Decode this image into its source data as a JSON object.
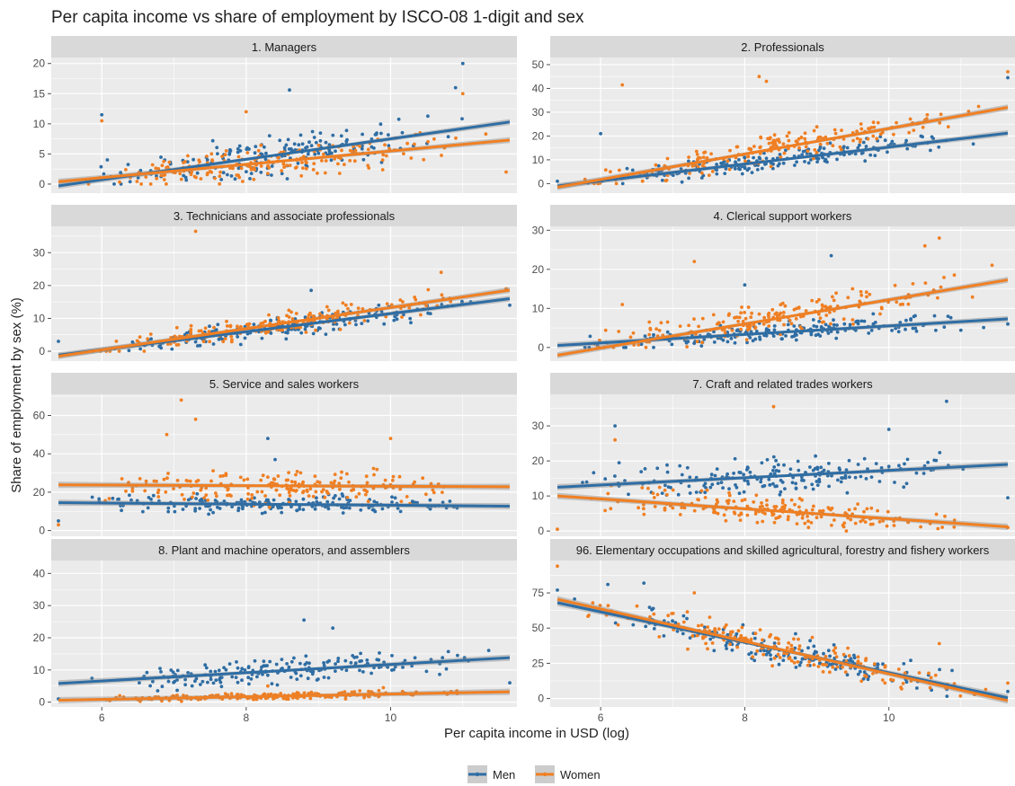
{
  "colors": {
    "men": "#2e6da4",
    "women": "#f07f22",
    "panel_bg": "#ebebeb",
    "strip_bg": "#d9d9d9",
    "grid": "#ffffff",
    "ribbon": "#8f8f8f"
  },
  "chart_data": {
    "type": "scatter",
    "title": "Per capita income vs share of employment by ISCO-08 1-digit and sex",
    "xlabel": "Per capita income in USD (log)",
    "ylabel": "Share of employment by sex (%)",
    "xlim": [
      5.3,
      11.75
    ],
    "x_ticks": [
      6,
      8,
      10
    ],
    "grid": true,
    "legend_position": "bottom",
    "series": [
      {
        "name": "Men",
        "key": "men",
        "color": "#2e6da4"
      },
      {
        "name": "Women",
        "key": "women",
        "color": "#f07f22"
      }
    ],
    "panels": [
      {
        "title": "1. Managers",
        "ylim": [
          -1.5,
          21
        ],
        "yticks": [
          0,
          5,
          10,
          15,
          20
        ],
        "fits": {
          "men": [
            [
              5.4,
              -0.3
            ],
            [
              11.65,
              10.3
            ]
          ],
          "women": [
            [
              5.4,
              0.4
            ],
            [
              11.65,
              7.3
            ]
          ]
        },
        "points": {
          "men": {
            "seed": 11,
            "n": 190,
            "noise": 2.6,
            "min": 0,
            "max": 20,
            "fixed": [
              [
                6.0,
                11.5
              ],
              [
                8.6,
                15.6
              ],
              [
                11.0,
                20.0
              ],
              [
                10.9,
                16.0
              ]
            ]
          },
          "women": {
            "seed": 12,
            "n": 190,
            "noise": 2.2,
            "min": 0,
            "max": 20,
            "fixed": [
              [
                6.0,
                10.5
              ],
              [
                11.6,
                2.0
              ],
              [
                11.0,
                15.0
              ],
              [
                8.0,
                12.0
              ]
            ]
          }
        }
      },
      {
        "title": "2. Professionals",
        "ylim": [
          -4,
          53
        ],
        "yticks": [
          0,
          10,
          20,
          30,
          40,
          50
        ],
        "fits": {
          "men": [
            [
              5.4,
              -1.0
            ],
            [
              11.65,
              21.2
            ]
          ],
          "women": [
            [
              5.4,
              -1.5
            ],
            [
              11.65,
              32.0
            ]
          ]
        },
        "points": {
          "men": {
            "seed": 21,
            "n": 190,
            "noise": 3.6,
            "min": 0,
            "max": 50,
            "fixed": [
              [
                6.0,
                21.0
              ],
              [
                11.65,
                44.5
              ],
              [
                5.4,
                1.0
              ]
            ]
          },
          "women": {
            "seed": 22,
            "n": 190,
            "noise": 5.0,
            "min": 0,
            "max": 50,
            "fixed": [
              [
                6.3,
                41.5
              ],
              [
                8.2,
                45.0
              ],
              [
                8.3,
                43.0
              ],
              [
                11.65,
                47.0
              ]
            ]
          }
        }
      },
      {
        "title": "3. Technicians and associate professionals",
        "ylim": [
          -3,
          38
        ],
        "yticks": [
          0,
          10,
          20,
          30
        ],
        "fits": {
          "men": [
            [
              5.4,
              -1.2
            ],
            [
              11.65,
              16.0
            ]
          ],
          "women": [
            [
              5.4,
              -1.5
            ],
            [
              11.65,
              18.6
            ]
          ]
        },
        "points": {
          "men": {
            "seed": 31,
            "n": 190,
            "noise": 2.8,
            "min": 0,
            "max": 40,
            "fixed": [
              [
                5.4,
                3.0
              ],
              [
                11.65,
                14.0
              ],
              [
                8.9,
                18.5
              ]
            ]
          },
          "women": {
            "seed": 32,
            "n": 190,
            "noise": 2.9,
            "min": 0,
            "max": 40,
            "fixed": [
              [
                7.3,
                36.5
              ],
              [
                10.7,
                24.0
              ],
              [
                11.6,
                19.0
              ]
            ]
          }
        }
      },
      {
        "title": "4. Clerical support workers",
        "ylim": [
          -3.5,
          31
        ],
        "yticks": [
          0,
          10,
          20,
          30
        ],
        "fits": {
          "men": [
            [
              5.4,
              0.5
            ],
            [
              11.65,
              7.3
            ]
          ],
          "women": [
            [
              5.4,
              -2.0
            ],
            [
              11.65,
              17.3
            ]
          ]
        },
        "points": {
          "men": {
            "seed": 41,
            "n": 190,
            "noise": 2.3,
            "min": 0,
            "max": 30,
            "fixed": [
              [
                9.2,
                23.5
              ],
              [
                8.0,
                16.0
              ],
              [
                11.65,
                6.0
              ]
            ]
          },
          "women": {
            "seed": 42,
            "n": 190,
            "noise": 3.6,
            "min": 0,
            "max": 30,
            "fixed": [
              [
                7.3,
                22.0
              ],
              [
                10.7,
                28.0
              ],
              [
                10.5,
                26.0
              ],
              [
                6.3,
                11.0
              ]
            ]
          }
        }
      },
      {
        "title": "5. Service and sales workers",
        "ylim": [
          -3,
          71
        ],
        "yticks": [
          0,
          20,
          40,
          60
        ],
        "fits": {
          "men": [
            [
              5.4,
              14.5
            ],
            [
              11.65,
              12.7
            ]
          ],
          "women": [
            [
              5.4,
              23.8
            ],
            [
              11.65,
              22.8
            ]
          ]
        },
        "points": {
          "men": {
            "seed": 51,
            "n": 190,
            "noise": 3.8,
            "min": 0,
            "max": 70,
            "fixed": [
              [
                8.3,
                48.0
              ],
              [
                8.4,
                37.0
              ],
              [
                5.4,
                5.0
              ]
            ]
          },
          "women": {
            "seed": 52,
            "n": 190,
            "noise": 7.5,
            "min": 0,
            "max": 70,
            "fixed": [
              [
                7.1,
                68.0
              ],
              [
                7.3,
                58.0
              ],
              [
                6.9,
                50.0
              ],
              [
                10.0,
                48.0
              ],
              [
                5.4,
                3.0
              ]
            ]
          }
        }
      },
      {
        "title": "7. Craft and related trades workers",
        "ylim": [
          -1.5,
          39
        ],
        "yticks": [
          0,
          10,
          20,
          30
        ],
        "fits": {
          "men": [
            [
              5.4,
              12.5
            ],
            [
              11.65,
              19.0
            ]
          ],
          "women": [
            [
              5.4,
              10.0
            ],
            [
              11.65,
              1.2
            ]
          ]
        },
        "points": {
          "men": {
            "seed": 71,
            "n": 190,
            "noise": 4.2,
            "min": 0,
            "max": 38,
            "fixed": [
              [
                10.8,
                37.0
              ],
              [
                6.2,
                30.0
              ],
              [
                11.65,
                9.5
              ],
              [
                10.0,
                29.0
              ]
            ]
          },
          "women": {
            "seed": 72,
            "n": 190,
            "noise": 3.2,
            "min": 0,
            "max": 38,
            "fixed": [
              [
                8.4,
                35.5
              ],
              [
                6.2,
                26.0
              ],
              [
                5.4,
                0.5
              ],
              [
                11.65,
                1.0
              ]
            ]
          }
        }
      },
      {
        "title": "8. Plant and machine operators, and assemblers",
        "ylim": [
          -1.5,
          44
        ],
        "yticks": [
          0,
          10,
          20,
          30,
          40
        ],
        "fits": {
          "men": [
            [
              5.4,
              5.8
            ],
            [
              11.65,
              13.8
            ]
          ],
          "women": [
            [
              5.4,
              0.6
            ],
            [
              11.65,
              3.2
            ]
          ]
        },
        "points": {
          "men": {
            "seed": 81,
            "n": 190,
            "noise": 3.4,
            "min": 0,
            "max": 40,
            "fixed": [
              [
                8.8,
                25.5
              ],
              [
                9.2,
                23.0
              ],
              [
                11.65,
                6.0
              ],
              [
                5.4,
                1.0
              ]
            ]
          },
          "women": {
            "seed": 82,
            "n": 190,
            "noise": 0.9,
            "min": 0,
            "max": 40,
            "fixed": [
              [
                8.3,
                5.0
              ],
              [
                9.9,
                4.5
              ]
            ]
          }
        }
      },
      {
        "title": "96. Elementary occupations and skilled agricultural, forestry and fishery workers",
        "ylim": [
          -6,
          98
        ],
        "yticks": [
          0,
          25,
          50,
          75
        ],
        "fits": {
          "men": [
            [
              5.4,
              68.0
            ],
            [
              11.65,
              0.5
            ]
          ],
          "women": [
            [
              5.4,
              70.5
            ],
            [
              11.65,
              -1.5
            ]
          ]
        },
        "points": {
          "men": {
            "seed": 91,
            "n": 190,
            "noise": 9.0,
            "min": 0,
            "max": 95,
            "fixed": [
              [
                5.4,
                77.0
              ],
              [
                6.1,
                81.0
              ],
              [
                6.6,
                82.0
              ],
              [
                11.65,
                5.0
              ]
            ]
          },
          "women": {
            "seed": 92,
            "n": 190,
            "noise": 9.5,
            "min": 0,
            "max": 95,
            "fixed": [
              [
                5.4,
                94.0
              ],
              [
                7.3,
                75.0
              ],
              [
                10.7,
                39.0
              ],
              [
                11.65,
                11.0
              ]
            ]
          }
        }
      }
    ]
  }
}
